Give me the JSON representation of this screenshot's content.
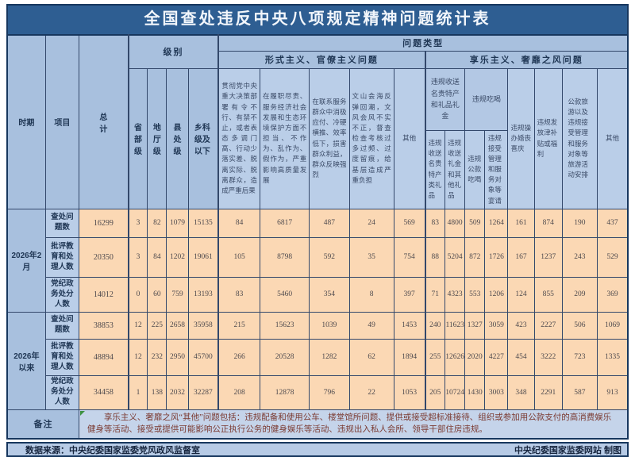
{
  "title": "全国查处违反中央八项规定精神问题统计表",
  "colors": {
    "title_bg": "#2E5E92",
    "border_dark": "#17375E",
    "header_blue": "#A8C0DE",
    "header_blue_light": "#BACEE8",
    "data_peach": "#FBD8B4",
    "remark_bg": "#C5D4EA",
    "remark_text": "#7B3A31",
    "source_bar_bg": "#B7CBE6",
    "flag_green": "#3D9140"
  },
  "chart_data": {
    "type": "table",
    "title": "全国查处违反中央八项规定精神问题统计表",
    "header": {
      "period": "时期",
      "item": "项目",
      "total": "总计",
      "level_group": "级别",
      "levels": [
        "省部级",
        "地厅级",
        "县处级",
        "乡科级及以下"
      ],
      "problem_type": "问题类型",
      "formalism_group": "形式主义、官僚主义问题",
      "formalism": [
        "贯彻党中央重大决策部署有令不行、有禁不止，或者表态多调门高、行动少落实差、脱离实际、脱离群众，造成严重后果",
        "在履职尽责、服务经济社会发展和生态环境保护方面不担当、不作为、乱作为、假作为，严重影响高质量发展",
        "在联系服务群众中消极应付、冷硬横推、效率低下，损害群众利益，群众反映强烈",
        "文山会海反弹回潮，文风会风不实不正，督查检查考核过多过频、过度留痕，给基层造成严重负担",
        "其他"
      ],
      "hedonism_group": "享乐主义、奢靡之风问题",
      "gifts_group": "违规收送名贵特产和礼品礼金",
      "gifts": [
        "违规收送名贵特产类礼品",
        "违规收送礼金和其他礼品"
      ],
      "dining_group": "违规吃喝",
      "dining": [
        "违规公款吃喝",
        "违规接受管理和服务对象等宴请"
      ],
      "hedonism_single": [
        "违规操办婚丧喜庆",
        "违规发放津补贴或福利",
        "公款旅游以及违规接受管理和服务对象等旅游活动安排",
        "其他"
      ]
    },
    "columns": [
      "总计",
      "省部级",
      "地厅级",
      "县处级",
      "乡科级及以下",
      "贯彻党中央重大决策部署有令不行、有禁不止，或者表态多调门高、行动少落实差、脱离实际、脱离群众，造成严重后果",
      "在履职尽责、服务经济社会发展和生态环境保护方面不担当、不作为、乱作为、假作为，严重影响高质量发展",
      "在联系服务群众中消极应付、冷硬横推、效率低下，损害群众利益，群众反映强烈",
      "文山会海反弹回潮，文风会风不实不正，督查检查考核过多过频、过度留痕，给基层造成严重负担",
      "形式主义其他",
      "违规收送名贵特产类礼品",
      "违规收送礼金和其他礼品",
      "违规公款吃喝",
      "违规接受管理和服务对象等宴请",
      "违规操办婚丧喜庆",
      "违规发放津补贴或福利",
      "公款旅游以及违规接受管理和服务对象等旅游活动安排",
      "享乐主义其他"
    ],
    "rows": [
      {
        "period": "2026年2月",
        "period_rowspan": 3,
        "item": "查处问题数",
        "values": [
          16299,
          3,
          82,
          1079,
          15135,
          84,
          6817,
          487,
          24,
          569,
          83,
          4800,
          509,
          1264,
          161,
          874,
          190,
          437
        ]
      },
      {
        "item": "批评教育和处理人数",
        "values": [
          20350,
          3,
          84,
          1202,
          19061,
          105,
          8798,
          592,
          35,
          754,
          88,
          5204,
          872,
          1726,
          167,
          1237,
          243,
          529
        ]
      },
      {
        "item": "党纪政务处分人数",
        "values": [
          14012,
          0,
          60,
          759,
          13193,
          83,
          5460,
          354,
          8,
          397,
          71,
          4323,
          553,
          1206,
          124,
          855,
          209,
          369
        ]
      },
      {
        "period": "2026年以来",
        "period_rowspan": 3,
        "item": "查处问题数",
        "values": [
          38853,
          12,
          225,
          2658,
          35958,
          215,
          15623,
          1039,
          49,
          1453,
          240,
          11623,
          1327,
          3059,
          423,
          2227,
          506,
          1069
        ]
      },
      {
        "item": "批评教育和处理人数",
        "values": [
          48894,
          12,
          232,
          2950,
          45700,
          266,
          20528,
          1282,
          62,
          1894,
          255,
          12626,
          2020,
          4227,
          454,
          3222,
          723,
          1335
        ]
      },
      {
        "item": "党纪政务处分人数",
        "values": [
          34458,
          1,
          138,
          2032,
          32287,
          208,
          12878,
          796,
          22,
          1053,
          205,
          10724,
          1430,
          3003,
          348,
          2291,
          587,
          913
        ]
      }
    ]
  },
  "remark": {
    "label": "备注",
    "text": "享乐主义、奢靡之风“其他”问题包括：违规配备和使用公车、楼堂馆所问题、提供或接受超标准接待、组织或参加用公款支付的高消费娱乐健身等活动、接受或提供可能影响公正执行公务的健身娱乐等活动、违规出入私人会所、领导干部住房违规。"
  },
  "footer": {
    "source": "数据来源：中央纪委国家监委党风政风监督室",
    "credit": "中央纪委国家监委网站 制图"
  }
}
